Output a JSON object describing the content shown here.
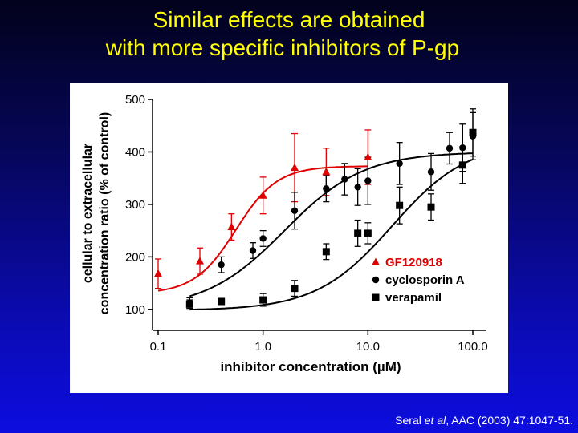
{
  "slide": {
    "title_line1": "Similar effects are obtained",
    "title_line2": "with more specific inhibitors of P-gp",
    "citation_prefix": "Seral ",
    "citation_italic": "et al",
    "citation_suffix": ", AAC (2003) 47:1047-51."
  },
  "colors": {
    "title": "#ffff00",
    "gf": "#e00000",
    "black": "#000000"
  },
  "chart_data": {
    "type": "scatter",
    "xlabel": "inhibitor concentration (µM)",
    "ylabel_line1": "cellular to extracellular",
    "ylabel_line2": "concentration ratio (% of control)",
    "xscale": "log",
    "xlim": [
      0.1,
      150
    ],
    "ylim": [
      60,
      500
    ],
    "xticks": [
      0.1,
      1.0,
      10.0,
      100.0
    ],
    "xtick_labels": [
      "0.1",
      "1.0",
      "10.0",
      "100.0"
    ],
    "yticks": [
      100,
      200,
      300,
      400,
      500
    ],
    "legend_position": "lower-right",
    "series": [
      {
        "name": "GF120918",
        "marker": "triangle",
        "color": "#e00000",
        "x": [
          0.1,
          0.25,
          0.5,
          1.0,
          2.0,
          4.0,
          10.0
        ],
        "y": [
          168,
          192,
          257,
          317,
          370,
          362,
          390
        ],
        "err": [
          28,
          25,
          25,
          35,
          65,
          45,
          52
        ],
        "fit": {
          "bottom": 130,
          "top": 373,
          "ec50": 0.55,
          "hill": 2.2,
          "xmin": 0.1,
          "xmax": 10
        }
      },
      {
        "name": "cyclosporin A",
        "marker": "circle",
        "color": "#000000",
        "x": [
          0.2,
          0.4,
          0.8,
          1.0,
          2.0,
          4.0,
          6.0,
          8.0,
          10.0,
          20.0,
          40.0,
          60.0,
          80.0,
          100.0
        ],
        "y": [
          112,
          185,
          212,
          235,
          288,
          330,
          348,
          333,
          345,
          378,
          362,
          407,
          408,
          430
        ],
        "err": [
          10,
          15,
          15,
          15,
          35,
          25,
          30,
          35,
          45,
          40,
          35,
          30,
          45,
          45
        ],
        "fit": {
          "bottom": 100,
          "top": 400,
          "ec50": 1.6,
          "hill": 1.15,
          "xmin": 0.2,
          "xmax": 100
        }
      },
      {
        "name": "verapamil",
        "marker": "square",
        "color": "#000000",
        "x": [
          0.2,
          0.4,
          1.0,
          2.0,
          4.0,
          8.0,
          10.0,
          20.0,
          40.0,
          80.0,
          100.0
        ],
        "y": [
          110,
          115,
          118,
          140,
          210,
          245,
          245,
          298,
          295,
          375,
          437
        ],
        "err": [
          8,
          5,
          12,
          15,
          15,
          25,
          20,
          35,
          25,
          35,
          45
        ],
        "fit": {
          "bottom": 98,
          "top": 420,
          "ec50": 17,
          "hill": 1.2,
          "xmin": 0.2,
          "xmax": 100
        }
      }
    ]
  }
}
